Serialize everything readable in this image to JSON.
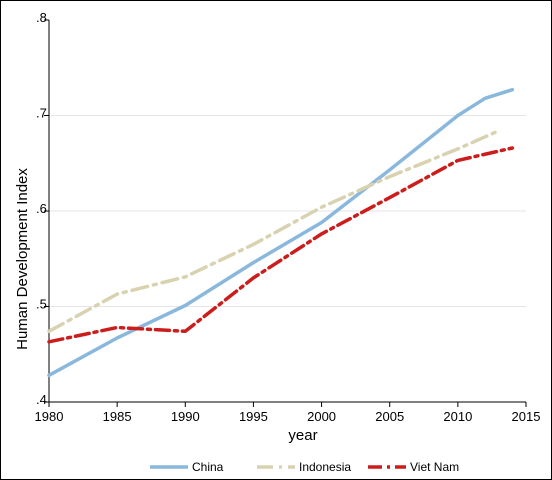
{
  "chart_data": {
    "type": "line",
    "title": "",
    "xlabel": "year",
    "ylabel": "Human Development Index",
    "xlim": [
      1980,
      2015
    ],
    "ylim": [
      0.4,
      0.8
    ],
    "xticks": [
      "1980",
      "1985",
      "1990",
      "1995",
      "2000",
      "2005",
      "2010",
      "2015"
    ],
    "yticks": [
      ".4",
      ".5",
      ".6",
      ".7",
      ".8"
    ],
    "grid": true,
    "legend_position": "bottom",
    "series": [
      {
        "name": "China",
        "color": "#8ab8dc",
        "style": "solid",
        "x": [
          1980,
          1985,
          1990,
          1995,
          2000,
          2005,
          2010,
          2012,
          2014
        ],
        "y": [
          0.428,
          0.467,
          0.501,
          0.546,
          0.588,
          0.643,
          0.7,
          0.718,
          0.727
        ]
      },
      {
        "name": "Indonesia",
        "color": "#d8d2b0",
        "style": "dashdot",
        "x": [
          1980,
          1985,
          1990,
          1995,
          2000,
          2005,
          2010,
          2013
        ],
        "y": [
          0.474,
          0.513,
          0.531,
          0.565,
          0.604,
          0.636,
          0.665,
          0.684
        ]
      },
      {
        "name": "Viet Nam",
        "color": "#cc1d1d",
        "style": "dashdot",
        "x": [
          1980,
          1985,
          1990,
          1995,
          2000,
          2005,
          2010,
          2014
        ],
        "y": [
          0.463,
          0.478,
          0.474,
          0.53,
          0.576,
          0.614,
          0.653,
          0.666
        ]
      }
    ]
  }
}
